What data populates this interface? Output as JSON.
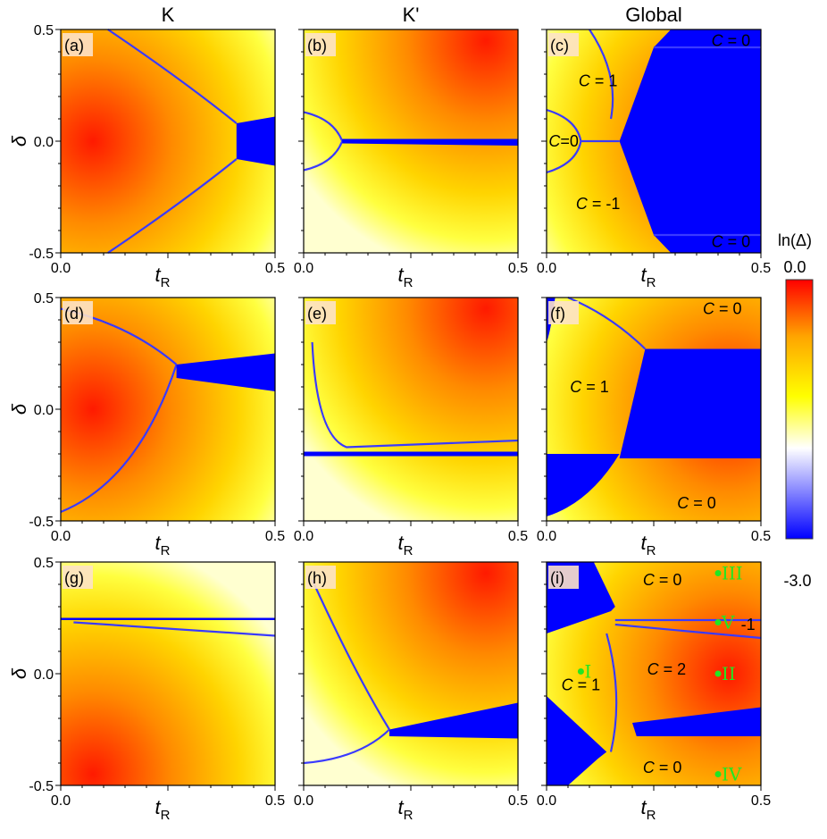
{
  "column_titles": [
    "K",
    "K'",
    "Global"
  ],
  "colorbar": {
    "label": "ln(Δ)",
    "max_label": "0.0",
    "min_label": "-3.0",
    "range": [
      -3.0,
      0.0
    ],
    "stops": [
      "#0000ff",
      "#ffffff",
      "#ffff00",
      "#ffa500",
      "#ff0000"
    ]
  },
  "chart_data": [
    {
      "type": "heatmap",
      "panel": "(a)",
      "column": "K",
      "xlabel": "t",
      "xlabel_sub": "R",
      "ylabel": "δ",
      "xlim": [
        0.0,
        0.5
      ],
      "ylim": [
        -0.5,
        0.5
      ],
      "xticks": [
        "0.0",
        "0.5"
      ],
      "yticks": [
        "0.5",
        "0.0",
        "-0.5"
      ],
      "regions": []
    },
    {
      "type": "heatmap",
      "panel": "(b)",
      "column": "K'",
      "xlabel": "t",
      "xlabel_sub": "R",
      "ylabel": "",
      "xlim": [
        0.0,
        0.5
      ],
      "ylim": [
        -0.5,
        0.5
      ],
      "xticks": [
        "0.0",
        "0.5"
      ],
      "yticks": [],
      "regions": []
    },
    {
      "type": "heatmap",
      "panel": "(c)",
      "column": "Global",
      "xlabel": "t",
      "xlabel_sub": "R",
      "ylabel": "",
      "xlim": [
        0.0,
        0.5
      ],
      "ylim": [
        -0.5,
        0.5
      ],
      "xticks": [
        "0.0",
        "0.5"
      ],
      "yticks": [],
      "regions": [
        {
          "label": "C = 0",
          "t_R": 0.43,
          "delta": 0.45
        },
        {
          "label": "C = 1",
          "t_R": 0.12,
          "delta": 0.27
        },
        {
          "label": "C=0",
          "t_R": 0.04,
          "delta": 0.0
        },
        {
          "label": "C = -1",
          "t_R": 0.12,
          "delta": -0.28
        },
        {
          "label": "C = 0",
          "t_R": 0.43,
          "delta": -0.45
        }
      ]
    },
    {
      "type": "heatmap",
      "panel": "(d)",
      "column": "K",
      "xlabel": "t",
      "xlabel_sub": "R",
      "ylabel": "δ",
      "xlim": [
        0.0,
        0.5
      ],
      "ylim": [
        -0.5,
        0.5
      ],
      "xticks": [
        "0.0",
        "0.5"
      ],
      "yticks": [
        "0.5",
        "0.0",
        "-0.5"
      ],
      "regions": []
    },
    {
      "type": "heatmap",
      "panel": "(e)",
      "column": "K'",
      "xlabel": "t",
      "xlabel_sub": "R",
      "ylabel": "",
      "xlim": [
        0.0,
        0.5
      ],
      "ylim": [
        -0.5,
        0.5
      ],
      "xticks": [
        "0.0",
        "0.5"
      ],
      "yticks": [],
      "regions": []
    },
    {
      "type": "heatmap",
      "panel": "(f)",
      "column": "Global",
      "xlabel": "t",
      "xlabel_sub": "R",
      "ylabel": "",
      "xlim": [
        0.0,
        0.5
      ],
      "ylim": [
        -0.5,
        0.5
      ],
      "xticks": [
        "0.0",
        "0.5"
      ],
      "yticks": [],
      "regions": [
        {
          "label": "C = 0",
          "t_R": 0.41,
          "delta": 0.45
        },
        {
          "label": "C = 1",
          "t_R": 0.1,
          "delta": 0.1
        },
        {
          "label": "C = 0",
          "t_R": 0.35,
          "delta": -0.42
        }
      ]
    },
    {
      "type": "heatmap",
      "panel": "(g)",
      "column": "K",
      "xlabel": "t",
      "xlabel_sub": "R",
      "ylabel": "δ",
      "xlim": [
        0.0,
        0.5
      ],
      "ylim": [
        -0.5,
        0.5
      ],
      "xticks": [
        "0.0",
        "0.5"
      ],
      "yticks": [
        "0.5",
        "0.0",
        "-0.5"
      ],
      "regions": []
    },
    {
      "type": "heatmap",
      "panel": "(h)",
      "column": "K'",
      "xlabel": "t",
      "xlabel_sub": "R",
      "ylabel": "",
      "xlim": [
        0.0,
        0.5
      ],
      "ylim": [
        -0.5,
        0.5
      ],
      "xticks": [
        "0.0",
        "0.5"
      ],
      "yticks": [],
      "regions": []
    },
    {
      "type": "heatmap",
      "panel": "(i)",
      "column": "Global",
      "xlabel": "t",
      "xlabel_sub": "R",
      "ylabel": "",
      "xlim": [
        0.0,
        0.5
      ],
      "ylim": [
        -0.5,
        0.5
      ],
      "xticks": [
        "0.0",
        "0.5"
      ],
      "yticks": [],
      "regions": [
        {
          "label": "C = 0",
          "t_R": 0.27,
          "delta": 0.42
        },
        {
          "label": "C = 2",
          "t_R": 0.28,
          "delta": 0.02
        },
        {
          "label": "C = 1",
          "t_R": 0.08,
          "delta": -0.05
        },
        {
          "label": "C = 0",
          "t_R": 0.27,
          "delta": -0.42
        },
        {
          "label": "-1",
          "t_R": 0.47,
          "delta": 0.22
        }
      ],
      "points": [
        {
          "label": "III",
          "t_R": 0.4,
          "delta": 0.45
        },
        {
          "label": "V",
          "t_R": 0.4,
          "delta": 0.23
        },
        {
          "label": "I",
          "t_R": 0.08,
          "delta": 0.01
        },
        {
          "label": "II",
          "t_R": 0.4,
          "delta": 0.0
        },
        {
          "label": "IV",
          "t_R": 0.4,
          "delta": -0.45
        }
      ]
    }
  ]
}
